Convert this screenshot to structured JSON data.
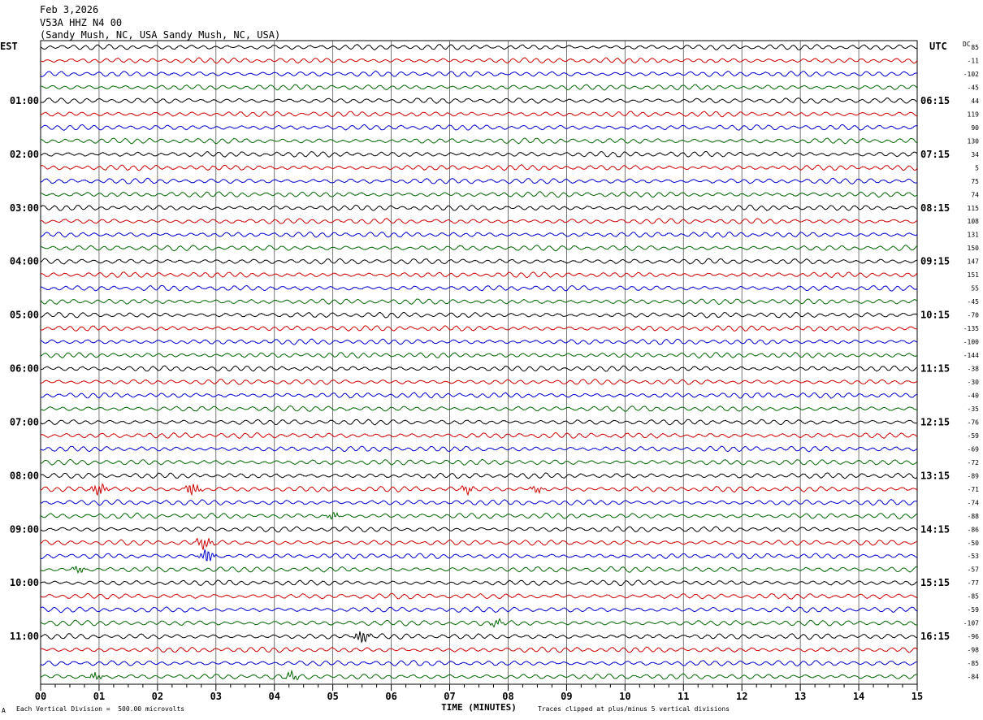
{
  "header": {
    "date": "Feb 3,2026",
    "station": "V53A HHZ N4 00",
    "location": "(Sandy Mush, NC, USA Sandy Mush, NC, USA)"
  },
  "left_axis_title": "EST",
  "right_axis_title": "UTC",
  "dc_title": "DC",
  "footer": {
    "scale_note": "Each Vertical Division =  500.00 microvolts",
    "clip_note": "Traces clipped at plus/minus 5 vertical divisions",
    "corner_mark": "A"
  },
  "chart_data": {
    "type": "line",
    "xlabel": "TIME (MINUTES)",
    "xlim": [
      0,
      15
    ],
    "x_ticks": [
      "00",
      "01",
      "02",
      "03",
      "04",
      "05",
      "06",
      "07",
      "08",
      "09",
      "10",
      "11",
      "12",
      "13",
      "14",
      "15"
    ],
    "left_hour_labels": [
      "01:00",
      "02:00",
      "03:00",
      "04:00",
      "05:00",
      "06:00",
      "07:00",
      "08:00",
      "09:00",
      "10:00",
      "11:00"
    ],
    "right_hour_labels": [
      "06:15",
      "07:15",
      "08:15",
      "09:15",
      "10:15",
      "11:15",
      "12:15",
      "13:15",
      "14:15",
      "15:15",
      "16:15"
    ],
    "trace_colors": [
      "#000000",
      "#cc0000",
      "#0000cc",
      "#006600"
    ],
    "dc_offsets": [
      85,
      -11,
      -102,
      -45,
      44,
      119,
      90,
      130,
      34,
      5,
      75,
      74,
      115,
      108,
      131,
      150,
      147,
      151,
      55,
      -45,
      -70,
      -135,
      -100,
      -144,
      -38,
      -30,
      -40,
      -35,
      -76,
      -59,
      -69,
      -72,
      -89,
      -71,
      -74,
      -88,
      -86,
      -50,
      -53,
      -57,
      -77,
      -85,
      -59,
      -107,
      -96,
      -98,
      -85,
      -84
    ],
    "events": [
      {
        "trace": 33,
        "minute": 1.0,
        "amplitude": "large"
      },
      {
        "trace": 33,
        "minute": 2.6,
        "amplitude": "large"
      },
      {
        "trace": 33,
        "minute": 7.3,
        "amplitude": "medium"
      },
      {
        "trace": 33,
        "minute": 8.5,
        "amplitude": "medium"
      },
      {
        "trace": 35,
        "minute": 5.0,
        "amplitude": "medium"
      },
      {
        "trace": 37,
        "minute": 2.8,
        "amplitude": "large"
      },
      {
        "trace": 38,
        "minute": 2.85,
        "amplitude": "large"
      },
      {
        "trace": 39,
        "minute": 0.65,
        "amplitude": "medium"
      },
      {
        "trace": 43,
        "minute": 7.8,
        "amplitude": "medium"
      },
      {
        "trace": 44,
        "minute": 5.5,
        "amplitude": "large"
      },
      {
        "trace": 47,
        "minute": 0.95,
        "amplitude": "medium"
      },
      {
        "trace": 47,
        "minute": 4.3,
        "amplitude": "medium"
      }
    ]
  }
}
